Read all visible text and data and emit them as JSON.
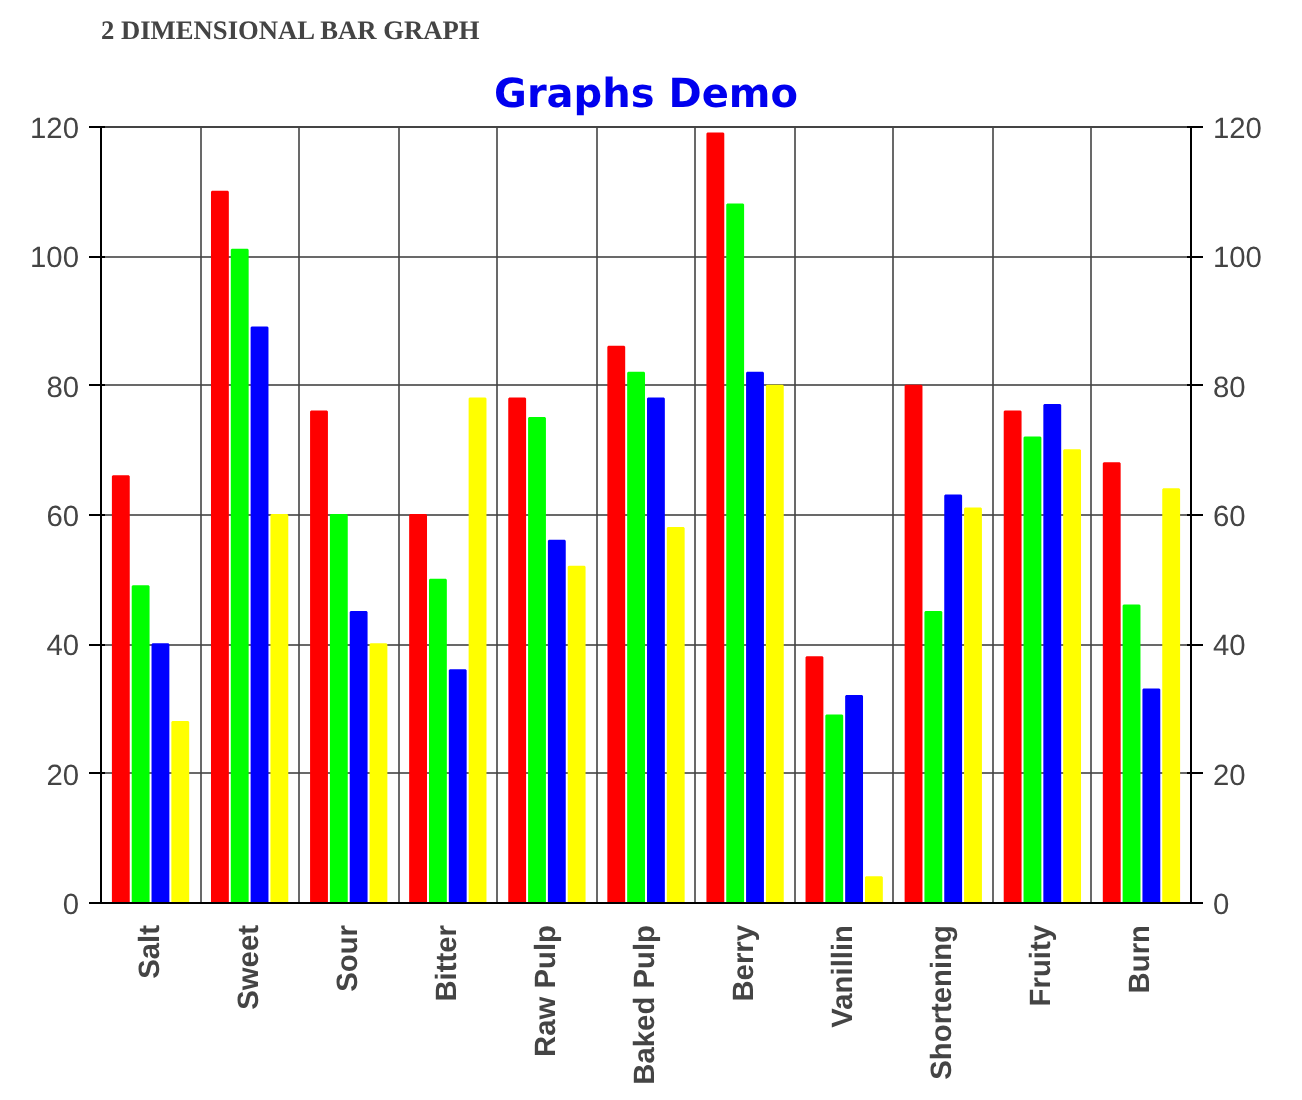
{
  "chart_data": {
    "type": "bar",
    "title": "2 DIMENSIONAL BAR GRAPH",
    "subtitle": "Graphs Demo",
    "categories": [
      "Salt",
      "Sweet",
      "Sour",
      "Bitter",
      "Raw Pulp",
      "Baked Pulp",
      "Berry",
      "Vanillin",
      "Shortening",
      "Fruity",
      "Burn"
    ],
    "series": [
      {
        "color": "#ff0000",
        "values": [
          66,
          110,
          76,
          60,
          78,
          86,
          119,
          38,
          80,
          76,
          68
        ]
      },
      {
        "color": "#00ff00",
        "values": [
          49,
          101,
          60,
          50,
          75,
          82,
          108,
          29,
          45,
          72,
          46
        ]
      },
      {
        "color": "#0000ff",
        "values": [
          40,
          89,
          45,
          36,
          56,
          78,
          82,
          32,
          63,
          77,
          33
        ]
      },
      {
        "color": "#ffff00",
        "values": [
          28,
          60,
          40,
          78,
          52,
          58,
          80,
          4,
          61,
          70,
          64
        ]
      }
    ],
    "ylim": [
      0,
      120
    ],
    "yticks": [
      0,
      20,
      40,
      60,
      80,
      100,
      120
    ],
    "y2lim": [
      0,
      120
    ],
    "y2ticks": [
      0,
      20,
      40,
      60,
      80,
      100,
      120
    ],
    "grid": true
  }
}
